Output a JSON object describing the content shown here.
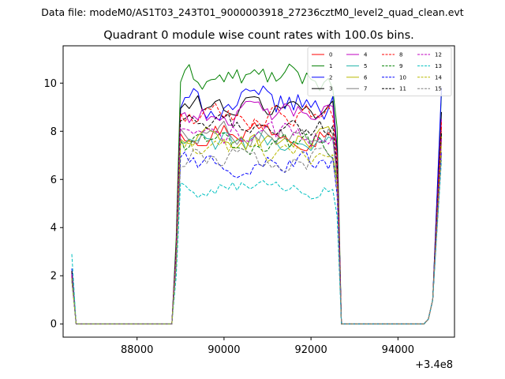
{
  "figure": {
    "suptitle": "Data file: modeM0/AS1T03_243T01_9000003918_27236cztM0_level2_quad_clean.evt",
    "title": "Quadrant 0 module wise count rates with 100.0s bins.",
    "offset_label": "+3.4e8"
  },
  "chart_data": {
    "type": "line",
    "title": "Quadrant 0 module wise count rates with 100.0s bins.",
    "xlabel": "",
    "ylabel": "",
    "x_offset": 340000000,
    "xlim": [
      86300,
      95300
    ],
    "ylim": [
      -0.55,
      11.55
    ],
    "xticks": [
      88000,
      90000,
      92000,
      94000
    ],
    "xtick_labels": [
      "88000",
      "90000",
      "92000",
      "94000"
    ],
    "yticks": [
      0,
      2,
      4,
      6,
      8,
      10
    ],
    "ytick_labels": [
      "0",
      "2",
      "4",
      "6",
      "8",
      "10"
    ],
    "grid": false,
    "legend_position": "top-right",
    "legend_columns": 4,
    "gti_segments": [
      {
        "start": 88900,
        "end": 92700
      },
      {
        "start": 94700,
        "end": 95000
      }
    ],
    "series": [
      {
        "name": "0",
        "color": "#ff0000",
        "style": "solid",
        "start": 2.2,
        "on_level": 8.1,
        "noise": 0.45,
        "end": 8.2
      },
      {
        "name": "1",
        "color": "#008000",
        "style": "solid",
        "start": 2.0,
        "on_level": 10.2,
        "noise": 0.45,
        "end": 9.6
      },
      {
        "name": "2",
        "color": "#0000ff",
        "style": "solid",
        "start": 2.3,
        "on_level": 9.1,
        "noise": 0.55,
        "end": 9.8
      },
      {
        "name": "3",
        "color": "#000000",
        "style": "solid",
        "start": 2.1,
        "on_level": 9.0,
        "noise": 0.4,
        "end": 8.8
      },
      {
        "name": "4",
        "color": "#c000c0",
        "style": "solid",
        "start": 2.1,
        "on_level": 8.7,
        "noise": 0.4,
        "end": 8.5
      },
      {
        "name": "5",
        "color": "#20b2aa",
        "style": "solid",
        "start": 1.9,
        "on_level": 7.5,
        "noise": 0.4,
        "end": 7.9
      },
      {
        "name": "6",
        "color": "#b8b800",
        "style": "solid",
        "start": 1.8,
        "on_level": 7.6,
        "noise": 0.4,
        "end": 7.8
      },
      {
        "name": "7",
        "color": "#808080",
        "style": "solid",
        "start": 1.9,
        "on_level": 8.0,
        "noise": 0.4,
        "end": 7.6
      },
      {
        "name": "8",
        "color": "#ff0000",
        "style": "dashed",
        "start": 2.0,
        "on_level": 8.6,
        "noise": 0.4,
        "end": 8.4
      },
      {
        "name": "9",
        "color": "#008000",
        "style": "dashed",
        "start": 1.8,
        "on_level": 7.5,
        "noise": 0.4,
        "end": 7.9
      },
      {
        "name": "10",
        "color": "#0000ff",
        "style": "dashed",
        "start": 1.9,
        "on_level": 6.7,
        "noise": 0.4,
        "end": 7.2
      },
      {
        "name": "11",
        "color": "#000000",
        "style": "dashed",
        "start": 2.2,
        "on_level": 8.2,
        "noise": 0.35,
        "end": 8.0
      },
      {
        "name": "12",
        "color": "#c000c0",
        "style": "dashed",
        "start": 2.0,
        "on_level": 7.8,
        "noise": 0.4,
        "end": 7.7
      },
      {
        "name": "13",
        "color": "#00c0c0",
        "style": "dashed",
        "start": 2.9,
        "on_level": 5.6,
        "noise": 0.3,
        "end": 6.8
      },
      {
        "name": "14",
        "color": "#b8b800",
        "style": "dashed",
        "start": 1.9,
        "on_level": 7.2,
        "noise": 0.4,
        "end": 7.5
      },
      {
        "name": "15",
        "color": "#808080",
        "style": "dashed",
        "start": 1.8,
        "on_level": 6.9,
        "noise": 0.4,
        "end": 7.0
      }
    ]
  }
}
